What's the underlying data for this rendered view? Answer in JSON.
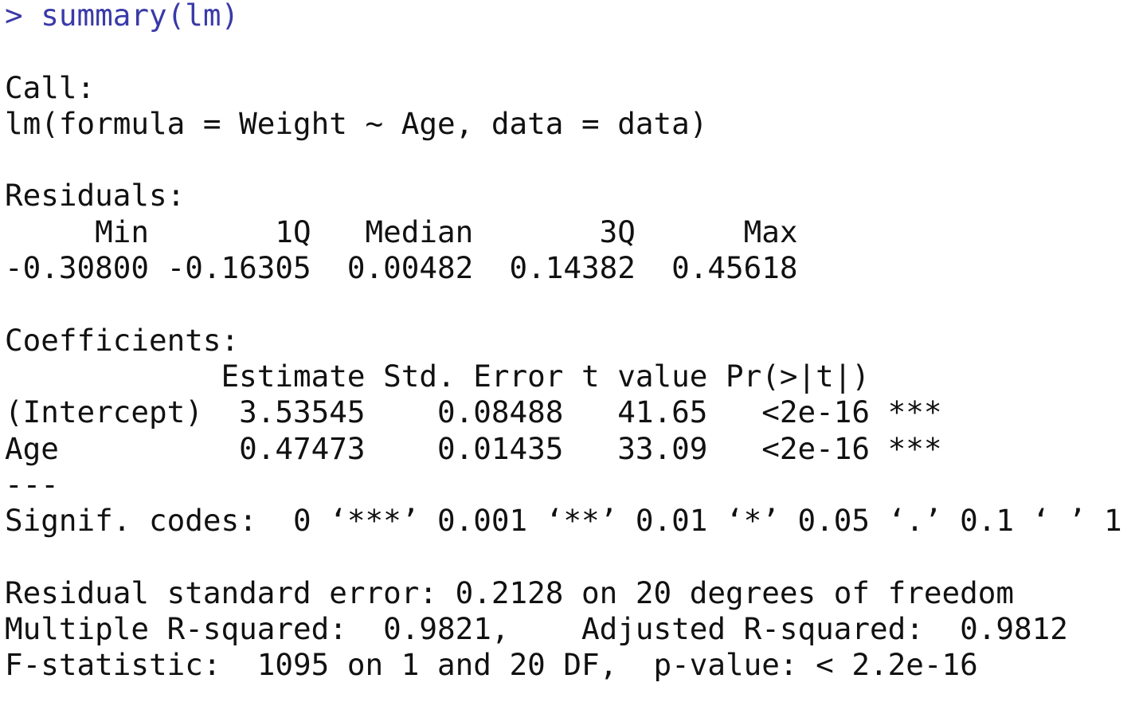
{
  "colors": {
    "command": "#3a3aa8",
    "output": "#111111"
  },
  "command": {
    "prompt": ">",
    "text": "summary(lm)"
  },
  "output_lines": [
    "",
    "Call:",
    "lm(formula = Weight ~ Age, data = data)",
    "",
    "Residuals:",
    "     Min       1Q   Median       3Q      Max ",
    "-0.30800 -0.16305  0.00482  0.14382  0.45618 ",
    "",
    "Coefficients:",
    "            Estimate Std. Error t value Pr(>|t|)    ",
    "(Intercept)  3.53545    0.08488   41.65   <2e-16 ***",
    "Age          0.47473    0.01435   33.09   <2e-16 ***",
    "---",
    "Signif. codes:  0 ‘***’ 0.001 ‘**’ 0.01 ‘*’ 0.05 ‘.’ 0.1 ‘ ’ 1",
    "",
    "Residual standard error: 0.2128 on 20 degrees of freedom",
    "Multiple R-squared:  0.9821,\tAdjusted R-squared:  0.9812 ",
    "F-statistic:  1095 on 1 and 20 DF,  p-value: < 2.2e-16"
  ]
}
